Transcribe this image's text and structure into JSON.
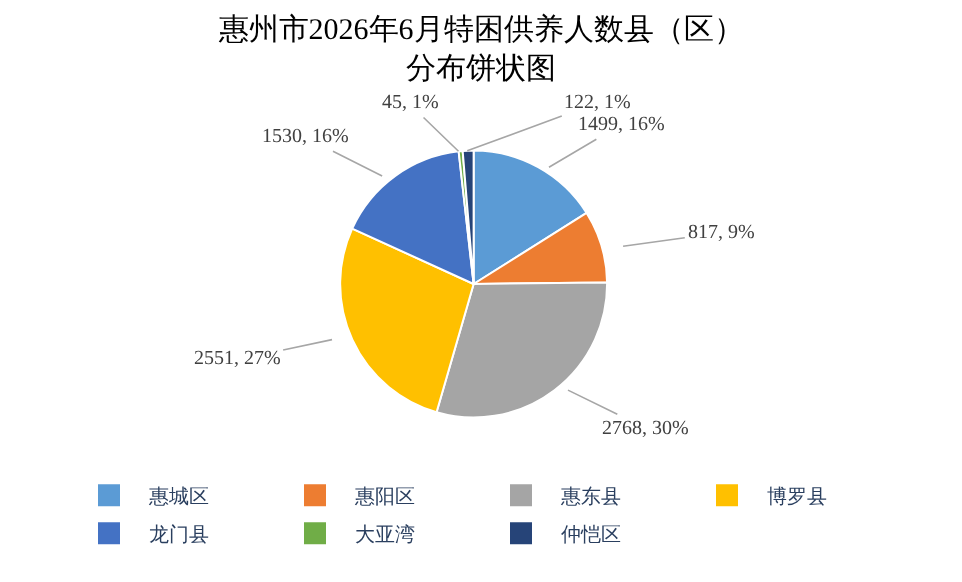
{
  "chart_data": {
    "type": "pie",
    "title": "惠州市2026年6月特困供养人数县（区）分布饼状图",
    "categories": [
      "惠城区",
      "惠阳区",
      "惠东县",
      "博罗县",
      "龙门县",
      "大亚湾",
      "仲恺区"
    ],
    "values": [
      1499,
      817,
      2768,
      2551,
      1530,
      45,
      122
    ],
    "value_labels": [
      "1499, 16%",
      "817, 9%",
      "2768, 30%",
      "2551, 27%",
      "1530, 16%",
      "45, 1%",
      "122, 1%"
    ],
    "colors": [
      "#5b9bd5",
      "#ed7d31",
      "#a5a5a5",
      "#ffc000",
      "#4472c4",
      "#70ad47",
      "#264478"
    ],
    "legend": "bottom"
  }
}
